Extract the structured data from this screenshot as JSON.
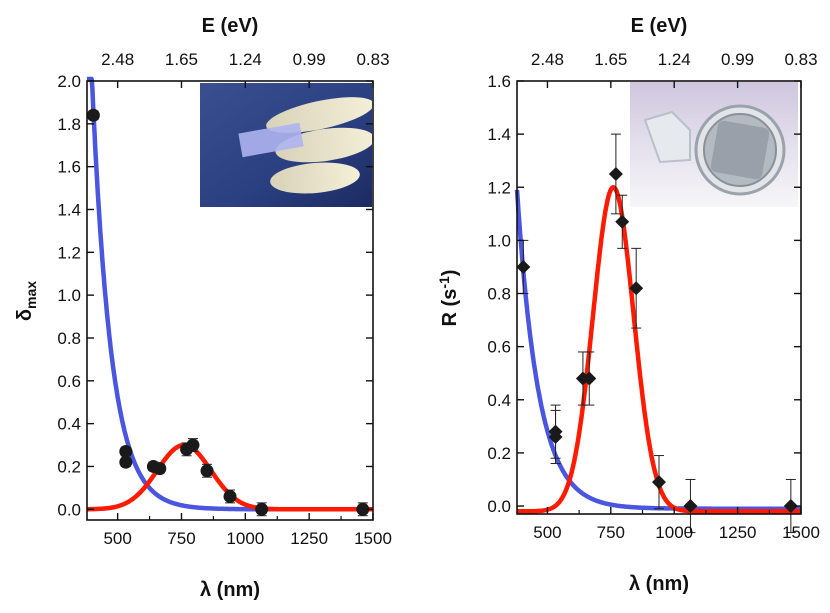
{
  "chart_data": [
    {
      "type": "scatter",
      "panel": "left",
      "xlabel": "λ (nm)",
      "ylabel": {
        "main": "δ",
        "sub": "max"
      },
      "top_axis_label": "E (eV)",
      "xlim": [
        380,
        1500
      ],
      "ylim": [
        -0.05,
        2.0
      ],
      "x_ticks": [
        500,
        750,
        1000,
        1250,
        1500
      ],
      "y_ticks": [
        0.0,
        0.2,
        0.4,
        0.6,
        0.8,
        1.0,
        1.2,
        1.4,
        1.6,
        1.8,
        2.0
      ],
      "y_tick_labels": [
        "0.0",
        "0.2",
        "0.4",
        "0.6",
        "0.8",
        "1.0",
        "1.2",
        "1.4",
        "1.6",
        "1.8",
        "2.0"
      ],
      "top_ticks": [
        {
          "label": "2.48",
          "wavelength_nm": 500
        },
        {
          "label": "1.65",
          "wavelength_nm": 750
        },
        {
          "label": "1.24",
          "wavelength_nm": 1000
        },
        {
          "label": "0.99",
          "wavelength_nm": 1250
        },
        {
          "label": "0.83",
          "wavelength_nm": 1500
        }
      ],
      "marker": "circle",
      "points": [
        {
          "x": 405,
          "y": 1.84,
          "err": 0.02
        },
        {
          "x": 532,
          "y": 0.27,
          "err": 0.02
        },
        {
          "x": 532,
          "y": 0.22,
          "err": 0.02
        },
        {
          "x": 640,
          "y": 0.2,
          "err": 0.02
        },
        {
          "x": 665,
          "y": 0.19,
          "err": 0.02
        },
        {
          "x": 770,
          "y": 0.28,
          "err": 0.03
        },
        {
          "x": 795,
          "y": 0.3,
          "err": 0.03
        },
        {
          "x": 850,
          "y": 0.18,
          "err": 0.03
        },
        {
          "x": 940,
          "y": 0.06,
          "err": 0.03
        },
        {
          "x": 1064,
          "y": 0.0,
          "err": 0.03
        },
        {
          "x": 1460,
          "y": 0.0,
          "err": 0.03
        }
      ],
      "curves": [
        {
          "name": "blue fit",
          "color": "#4a55e0",
          "kind": "decay",
          "x0": 380,
          "y0": 2.6,
          "tau": 75
        },
        {
          "name": "red fit",
          "color": "#ff1a00",
          "kind": "gauss",
          "amp": 0.3,
          "center": 760,
          "sigma": 105,
          "offset": 0.0
        }
      ],
      "inset_photo": "hand holding a glass slide"
    },
    {
      "type": "scatter",
      "panel": "right",
      "xlabel": "λ (nm)",
      "ylabel": {
        "main": "R (s",
        "sup": "-1",
        "end": ")"
      },
      "top_axis_label": "E (eV)",
      "xlim": [
        380,
        1500
      ],
      "ylim": [
        -0.03,
        1.6
      ],
      "x_ticks": [
        500,
        750,
        1000,
        1250,
        1500
      ],
      "y_ticks": [
        0.0,
        0.2,
        0.4,
        0.6,
        0.8,
        1.0,
        1.2,
        1.4,
        1.6
      ],
      "y_tick_labels": [
        "0.0",
        "0.2",
        "0.4",
        "0.6",
        "0.8",
        "1.0",
        "1.2",
        "1.4",
        "1.6"
      ],
      "top_ticks": [
        {
          "label": "2.48",
          "wavelength_nm": 500
        },
        {
          "label": "1.65",
          "wavelength_nm": 750
        },
        {
          "label": "1.24",
          "wavelength_nm": 1000
        },
        {
          "label": "0.99",
          "wavelength_nm": 1250
        },
        {
          "label": "0.83",
          "wavelength_nm": 1500
        }
      ],
      "marker": "diamond",
      "points": [
        {
          "x": 405,
          "y": 0.9,
          "err": 0.1
        },
        {
          "x": 532,
          "y": 0.28,
          "err": 0.1
        },
        {
          "x": 532,
          "y": 0.26,
          "err": 0.1
        },
        {
          "x": 640,
          "y": 0.48,
          "err": 0.1
        },
        {
          "x": 665,
          "y": 0.48,
          "err": 0.1
        },
        {
          "x": 770,
          "y": 1.25,
          "err": 0.15
        },
        {
          "x": 795,
          "y": 1.07,
          "err": 0.1
        },
        {
          "x": 850,
          "y": 0.82,
          "err": 0.15
        },
        {
          "x": 940,
          "y": 0.09,
          "err": 0.1
        },
        {
          "x": 1064,
          "y": 0.0,
          "err": 0.1
        },
        {
          "x": 1460,
          "y": 0.0,
          "err": 0.1
        }
      ],
      "curves": [
        {
          "name": "blue fit",
          "color": "#4a55e0",
          "kind": "decay",
          "x0": 380,
          "y0": 1.2,
          "tau": 85,
          "offset": -0.01
        },
        {
          "name": "red fit",
          "color": "#ff1a00",
          "kind": "gauss",
          "amp": 1.22,
          "center": 760,
          "sigma": 80,
          "offset": -0.02
        }
      ],
      "inset_photo": "glass vial containing a sample"
    }
  ]
}
